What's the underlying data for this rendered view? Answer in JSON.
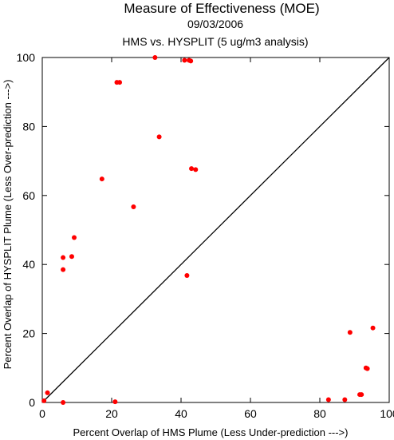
{
  "chart_data": {
    "type": "scatter",
    "title": "Measure of Effectiveness (MOE)",
    "subtitle_lines": [
      "09/03/2006",
      "HMS vs. HYSPLIT  (5 ug/m3 analysis)"
    ],
    "xlabel": "Percent Overlap of HMS Plume (Less Under-prediction --->)",
    "ylabel": "Percent Overlap of HYSPLIT Plume (Less Over-prediction --->)",
    "xlim": [
      0,
      100
    ],
    "ylim": [
      0,
      100
    ],
    "xticks": [
      0,
      20,
      40,
      60,
      80,
      100
    ],
    "yticks": [
      0,
      20,
      40,
      60,
      80,
      100
    ],
    "reference_line": "y = x",
    "grid": false,
    "point_color": "#ff0000",
    "series": [
      {
        "points": [
          [
            0.5,
            0.5
          ],
          [
            1.5,
            2.8
          ],
          [
            6.0,
            0.0
          ],
          [
            6.0,
            38.5
          ],
          [
            6.0,
            42.0
          ],
          [
            8.5,
            42.3
          ],
          [
            9.2,
            47.8
          ],
          [
            17.2,
            64.8
          ],
          [
            21.0,
            0.2
          ],
          [
            21.5,
            92.8
          ],
          [
            22.3,
            92.8
          ],
          [
            26.3,
            56.7
          ],
          [
            32.5,
            100.0
          ],
          [
            33.7,
            77.0
          ],
          [
            41.0,
            99.2
          ],
          [
            41.7,
            36.8
          ],
          [
            42.3,
            99.2
          ],
          [
            42.8,
            99.0
          ],
          [
            43.0,
            67.8
          ],
          [
            44.2,
            67.5
          ],
          [
            82.5,
            0.8
          ],
          [
            87.2,
            0.8
          ],
          [
            88.7,
            20.3
          ],
          [
            91.5,
            2.3
          ],
          [
            92.0,
            2.3
          ],
          [
            93.3,
            10.0
          ],
          [
            93.7,
            9.8
          ],
          [
            95.3,
            21.6
          ]
        ]
      }
    ]
  }
}
